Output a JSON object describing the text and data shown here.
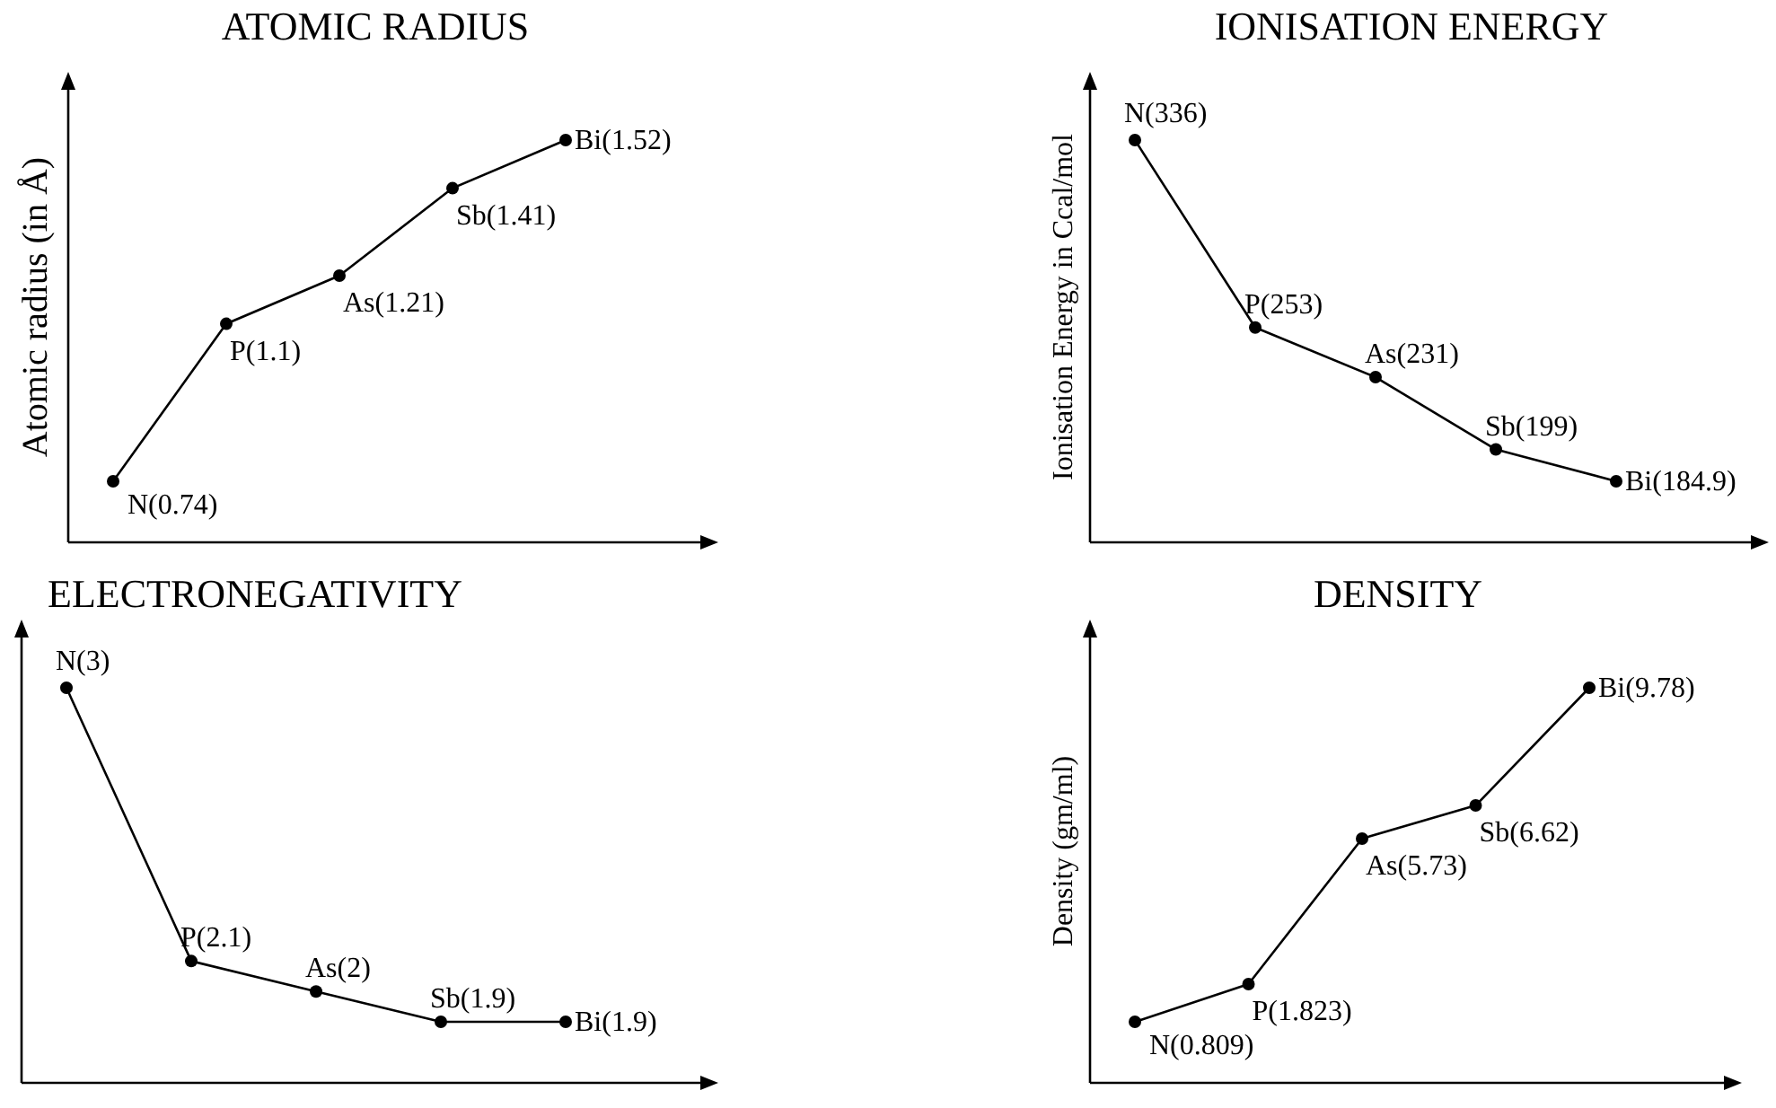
{
  "chart_data": [
    {
      "type": "line",
      "title": "ATOMIC RADIUS",
      "ylabel": "Atomic radius (in Å)",
      "categories": [
        null,
        null,
        null,
        null,
        null
      ],
      "values": [
        0.74,
        1.1,
        1.21,
        1.41,
        1.52
      ],
      "value_labels": [
        "N(0.74)",
        "P(1.1)",
        "As(1.21)",
        "Sb(1.41)",
        "Bi(1.52)"
      ],
      "color": "#000000",
      "marker": "circle"
    },
    {
      "type": "line",
      "title": "IONISATION ENERGY",
      "ylabel": "Ionisation Energy in Ccal/mol",
      "categories": [
        null,
        null,
        null,
        null,
        null
      ],
      "values": [
        336,
        253,
        231,
        199,
        184.9
      ],
      "value_labels": [
        "N(336)",
        "P(253)",
        "As(231)",
        "Sb(199)",
        "Bi(184.9)"
      ],
      "color": "#000000",
      "marker": "circle"
    },
    {
      "type": "line",
      "title": "ELECTRONEGATIVITY",
      "categories": [
        null,
        null,
        null,
        null,
        null
      ],
      "values": [
        3,
        2.1,
        2,
        1.9,
        1.9
      ],
      "value_labels": [
        "N(3)",
        "P(2.1)",
        "As(2)",
        "Sb(1.9)",
        "Bi(1.9)"
      ],
      "color": "#000000",
      "marker": "circle"
    },
    {
      "type": "line",
      "title": "DENSITY",
      "ylabel": "Density (gm/ml)",
      "categories": [
        null,
        null,
        null,
        null,
        null
      ],
      "values": [
        0.809,
        1.823,
        5.73,
        6.62,
        9.78
      ],
      "value_labels": [
        "N(0.809)",
        "P(1.823)",
        "As(5.73)",
        "Sb(6.62)",
        "Bi(9.78)"
      ],
      "color": "#000000",
      "marker": "circle"
    }
  ]
}
